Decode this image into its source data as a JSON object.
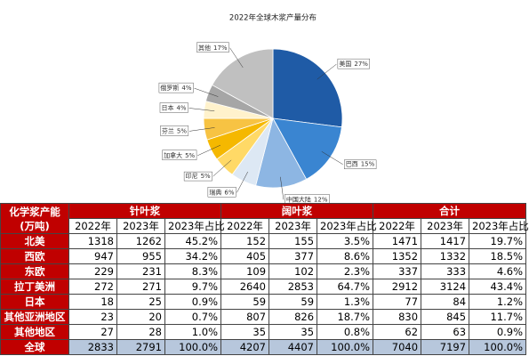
{
  "chart_data": {
    "type": "pie",
    "title": "2022年全球木浆产量分布",
    "categories": [
      "美国",
      "巴西",
      "中国大陆",
      "瑞典",
      "印尼",
      "加拿大",
      "芬兰",
      "日本",
      "俄罗斯",
      "其他"
    ],
    "values": [
      27,
      15,
      12,
      6,
      5,
      5,
      5,
      4,
      4,
      17
    ],
    "value_labels": [
      "27%",
      "15%",
      "12%",
      "6%",
      "5%",
      "5%",
      "5%",
      "4%",
      "4%",
      "17%"
    ],
    "colors": [
      "#1f5ba6",
      "#3a85d1",
      "#8db6e3",
      "#dde8f4",
      "#ffd966",
      "#f5b800",
      "#f7c343",
      "#fff2cc",
      "#a6a6a6",
      "#c0c0c0"
    ]
  },
  "table": {
    "corner": [
      "化学浆产能",
      "(万吨)"
    ],
    "groups": [
      "针叶浆",
      "阔叶浆",
      "合计"
    ],
    "subheaders": [
      "2022年",
      "2023年",
      "2023年占比"
    ],
    "rows": [
      [
        "北美",
        "1318",
        "1262",
        "45.2%",
        "152",
        "155",
        "3.5%",
        "1471",
        "1417",
        "19.7%"
      ],
      [
        "西欧",
        "947",
        "955",
        "34.2%",
        "405",
        "377",
        "8.6%",
        "1352",
        "1332",
        "18.5%"
      ],
      [
        "东欧",
        "229",
        "231",
        "8.3%",
        "109",
        "102",
        "2.3%",
        "337",
        "333",
        "4.6%"
      ],
      [
        "拉丁美洲",
        "272",
        "271",
        "9.7%",
        "2640",
        "2853",
        "64.7%",
        "2912",
        "3124",
        "43.4%"
      ],
      [
        "日本",
        "18",
        "25",
        "0.9%",
        "59",
        "59",
        "1.3%",
        "77",
        "84",
        "1.2%"
      ],
      [
        "其他亚洲地区",
        "23",
        "20",
        "0.7%",
        "807",
        "826",
        "18.7%",
        "830",
        "845",
        "11.7%"
      ],
      [
        "其他地区",
        "27",
        "28",
        "1.0%",
        "35",
        "35",
        "0.8%",
        "62",
        "63",
        "0.9%"
      ],
      [
        "全球",
        "2833",
        "2791",
        "100.0%",
        "4207",
        "4407",
        "100.0%",
        "7040",
        "7197",
        "100.0%"
      ]
    ]
  }
}
